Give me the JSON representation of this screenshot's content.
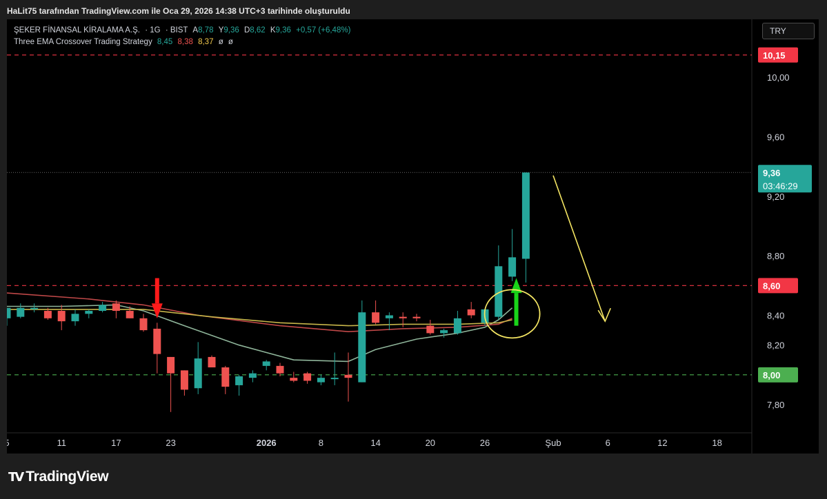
{
  "caption": "HaLit75 tarafından TradingView.com ile Oca 29, 2026 14:38 UTC+3 tarihinde oluşturuldu",
  "symbol": {
    "name": "ŞEKER FİNANSAL KİRALAMA A.Ş.",
    "interval": "1G",
    "exchange": "BIST",
    "open_label": "A",
    "open": "8,78",
    "high_label": "Y",
    "high": "9,36",
    "low_label": "D",
    "low": "8,62",
    "close_label": "K",
    "close": "9,36",
    "change": "+0,57 (+6,48%)"
  },
  "indicator": {
    "name": "Three EMA Crossover Trading Strategy",
    "v1": "8,45",
    "v2": "8,38",
    "v3": "8,37",
    "extra1": "ø",
    "extra2": "ø"
  },
  "currency": "TRY",
  "footer_logo": "TradingView",
  "colors": {
    "up": "#26a69a",
    "down": "#ef5350",
    "ema_green": "#8fb59a",
    "ema_red": "#c04848",
    "ema_yellow": "#c8b64a",
    "resistance": "#f23645",
    "support": "#4caf50",
    "annotation": "#f5e663"
  },
  "chart_data": {
    "type": "candlestick",
    "y_range": [
      7.61,
      10.39
    ],
    "x_range": [
      0,
      52.5
    ],
    "y_ticks": [
      {
        "value": 10.0,
        "label": "10,00"
      },
      {
        "value": 9.6,
        "label": "9,60"
      },
      {
        "value": 9.2,
        "label": "9,20"
      },
      {
        "value": 8.8,
        "label": "8,80"
      },
      {
        "value": 8.4,
        "label": "8,40"
      },
      {
        "value": 8.2,
        "label": "8,20"
      },
      {
        "value": 7.8,
        "label": "7,80"
      }
    ],
    "x_ticks": [
      {
        "index": 0,
        "label": "5"
      },
      {
        "index": 4,
        "label": "11"
      },
      {
        "index": 8,
        "label": "17"
      },
      {
        "index": 12,
        "label": "23"
      },
      {
        "index": 19,
        "label": "2026"
      },
      {
        "index": 23,
        "label": "8"
      },
      {
        "index": 27,
        "label": "14"
      },
      {
        "index": 31,
        "label": "20"
      },
      {
        "index": 35,
        "label": "26"
      },
      {
        "index": 40,
        "label": "Şub"
      },
      {
        "index": 44,
        "label": "6"
      },
      {
        "index": 48,
        "label": "12"
      },
      {
        "index": 52,
        "label": "18"
      }
    ],
    "candles": [
      {
        "i": 0,
        "o": 8.38,
        "h": 8.45,
        "l": 8.33,
        "c": 8.45
      },
      {
        "i": 1,
        "o": 8.39,
        "h": 8.48,
        "l": 8.38,
        "c": 8.45
      },
      {
        "i": 2,
        "o": 8.45,
        "h": 8.48,
        "l": 8.42,
        "c": 8.45
      },
      {
        "i": 3,
        "o": 8.43,
        "h": 8.45,
        "l": 8.37,
        "c": 8.38
      },
      {
        "i": 4,
        "o": 8.43,
        "h": 8.47,
        "l": 8.3,
        "c": 8.36
      },
      {
        "i": 5,
        "o": 8.36,
        "h": 8.44,
        "l": 8.33,
        "c": 8.41
      },
      {
        "i": 6,
        "o": 8.41,
        "h": 8.44,
        "l": 8.38,
        "c": 8.43
      },
      {
        "i": 7,
        "o": 8.43,
        "h": 8.49,
        "l": 8.42,
        "c": 8.47
      },
      {
        "i": 8,
        "o": 8.48,
        "h": 8.5,
        "l": 8.38,
        "c": 8.43
      },
      {
        "i": 9,
        "o": 8.43,
        "h": 8.46,
        "l": 8.38,
        "c": 8.38
      },
      {
        "i": 10,
        "o": 8.38,
        "h": 8.41,
        "l": 8.29,
        "c": 8.3
      },
      {
        "i": 11,
        "o": 8.31,
        "h": 8.35,
        "l": 8.01,
        "c": 8.14
      },
      {
        "i": 12,
        "o": 8.12,
        "h": 8.12,
        "l": 7.75,
        "c": 8.01
      },
      {
        "i": 13,
        "o": 8.03,
        "h": 8.03,
        "l": 7.86,
        "c": 7.9
      },
      {
        "i": 14,
        "o": 7.91,
        "h": 8.22,
        "l": 7.87,
        "c": 8.11
      },
      {
        "i": 15,
        "o": 8.12,
        "h": 8.13,
        "l": 8.05,
        "c": 8.05
      },
      {
        "i": 16,
        "o": 8.05,
        "h": 8.06,
        "l": 7.87,
        "c": 7.92
      },
      {
        "i": 17,
        "o": 7.93,
        "h": 8.0,
        "l": 7.86,
        "c": 7.99
      },
      {
        "i": 18,
        "o": 7.98,
        "h": 8.03,
        "l": 7.95,
        "c": 8.01
      },
      {
        "i": 19,
        "o": 8.06,
        "h": 8.1,
        "l": 8.03,
        "c": 8.09
      },
      {
        "i": 20,
        "o": 8.06,
        "h": 8.08,
        "l": 7.99,
        "c": 8.01
      },
      {
        "i": 21,
        "o": 7.98,
        "h": 8.02,
        "l": 7.95,
        "c": 7.96
      },
      {
        "i": 22,
        "o": 8.01,
        "h": 8.02,
        "l": 7.94,
        "c": 7.96
      },
      {
        "i": 23,
        "o": 7.95,
        "h": 8.0,
        "l": 7.93,
        "c": 7.98
      },
      {
        "i": 24,
        "o": 7.98,
        "h": 8.15,
        "l": 7.93,
        "c": 7.98
      },
      {
        "i": 25,
        "o": 8.0,
        "h": 8.15,
        "l": 7.82,
        "c": 7.98
      },
      {
        "i": 26,
        "o": 7.95,
        "h": 8.5,
        "l": 7.95,
        "c": 8.42
      },
      {
        "i": 27,
        "o": 8.42,
        "h": 8.5,
        "l": 8.34,
        "c": 8.35
      },
      {
        "i": 28,
        "o": 8.38,
        "h": 8.42,
        "l": 8.3,
        "c": 8.4
      },
      {
        "i": 29,
        "o": 8.39,
        "h": 8.42,
        "l": 8.32,
        "c": 8.38
      },
      {
        "i": 30,
        "o": 8.39,
        "h": 8.41,
        "l": 8.36,
        "c": 8.38
      },
      {
        "i": 31,
        "o": 8.33,
        "h": 8.37,
        "l": 8.27,
        "c": 8.28
      },
      {
        "i": 32,
        "o": 8.28,
        "h": 8.31,
        "l": 8.25,
        "c": 8.3
      },
      {
        "i": 33,
        "o": 8.28,
        "h": 8.43,
        "l": 8.27,
        "c": 8.38
      },
      {
        "i": 34,
        "o": 8.44,
        "h": 8.49,
        "l": 8.38,
        "c": 8.4
      },
      {
        "i": 35,
        "o": 8.35,
        "h": 8.44,
        "l": 8.33,
        "c": 8.44
      },
      {
        "i": 36,
        "o": 8.39,
        "h": 8.87,
        "l": 8.37,
        "c": 8.73
      },
      {
        "i": 37,
        "o": 8.66,
        "h": 8.98,
        "l": 8.63,
        "c": 8.79
      },
      {
        "i": 38,
        "o": 8.78,
        "h": 9.36,
        "l": 8.62,
        "c": 9.36
      }
    ],
    "series": [
      {
        "color": "#8fb59a",
        "values": [
          {
            "i": 0,
            "v": 8.46
          },
          {
            "i": 4,
            "v": 8.46
          },
          {
            "i": 8,
            "v": 8.47
          },
          {
            "i": 10,
            "v": 8.43
          },
          {
            "i": 13,
            "v": 8.33
          },
          {
            "i": 17,
            "v": 8.2
          },
          {
            "i": 21,
            "v": 8.1
          },
          {
            "i": 25,
            "v": 8.09
          },
          {
            "i": 27,
            "v": 8.17
          },
          {
            "i": 30,
            "v": 8.24
          },
          {
            "i": 33,
            "v": 8.28
          },
          {
            "i": 35,
            "v": 8.32
          },
          {
            "i": 36,
            "v": 8.37
          },
          {
            "i": 37,
            "v": 8.45
          }
        ]
      },
      {
        "color": "#c04848",
        "values": [
          {
            "i": 0,
            "v": 8.55
          },
          {
            "i": 6,
            "v": 8.51
          },
          {
            "i": 10,
            "v": 8.47
          },
          {
            "i": 14,
            "v": 8.4
          },
          {
            "i": 20,
            "v": 8.33
          },
          {
            "i": 25,
            "v": 8.29
          },
          {
            "i": 29,
            "v": 8.31
          },
          {
            "i": 33,
            "v": 8.32
          },
          {
            "i": 36,
            "v": 8.34
          },
          {
            "i": 37,
            "v": 8.38
          }
        ]
      },
      {
        "color": "#c8b64a",
        "values": [
          {
            "i": 0,
            "v": 8.44
          },
          {
            "i": 6,
            "v": 8.44
          },
          {
            "i": 10,
            "v": 8.44
          },
          {
            "i": 15,
            "v": 8.39
          },
          {
            "i": 20,
            "v": 8.35
          },
          {
            "i": 25,
            "v": 8.33
          },
          {
            "i": 29,
            "v": 8.34
          },
          {
            "i": 33,
            "v": 8.34
          },
          {
            "i": 36,
            "v": 8.35
          },
          {
            "i": 37,
            "v": 8.37
          }
        ]
      }
    ],
    "horizontal_lines": [
      {
        "value": 10.15,
        "label": "10,15",
        "color": "#f23645"
      },
      {
        "value": 8.6,
        "label": "8,60",
        "color": "#f23645"
      },
      {
        "value": 8.0,
        "label": "8,00",
        "color": "#4caf50"
      }
    ],
    "last_price": {
      "value": 9.36,
      "label": "9,36",
      "countdown": "03:46:29"
    }
  }
}
